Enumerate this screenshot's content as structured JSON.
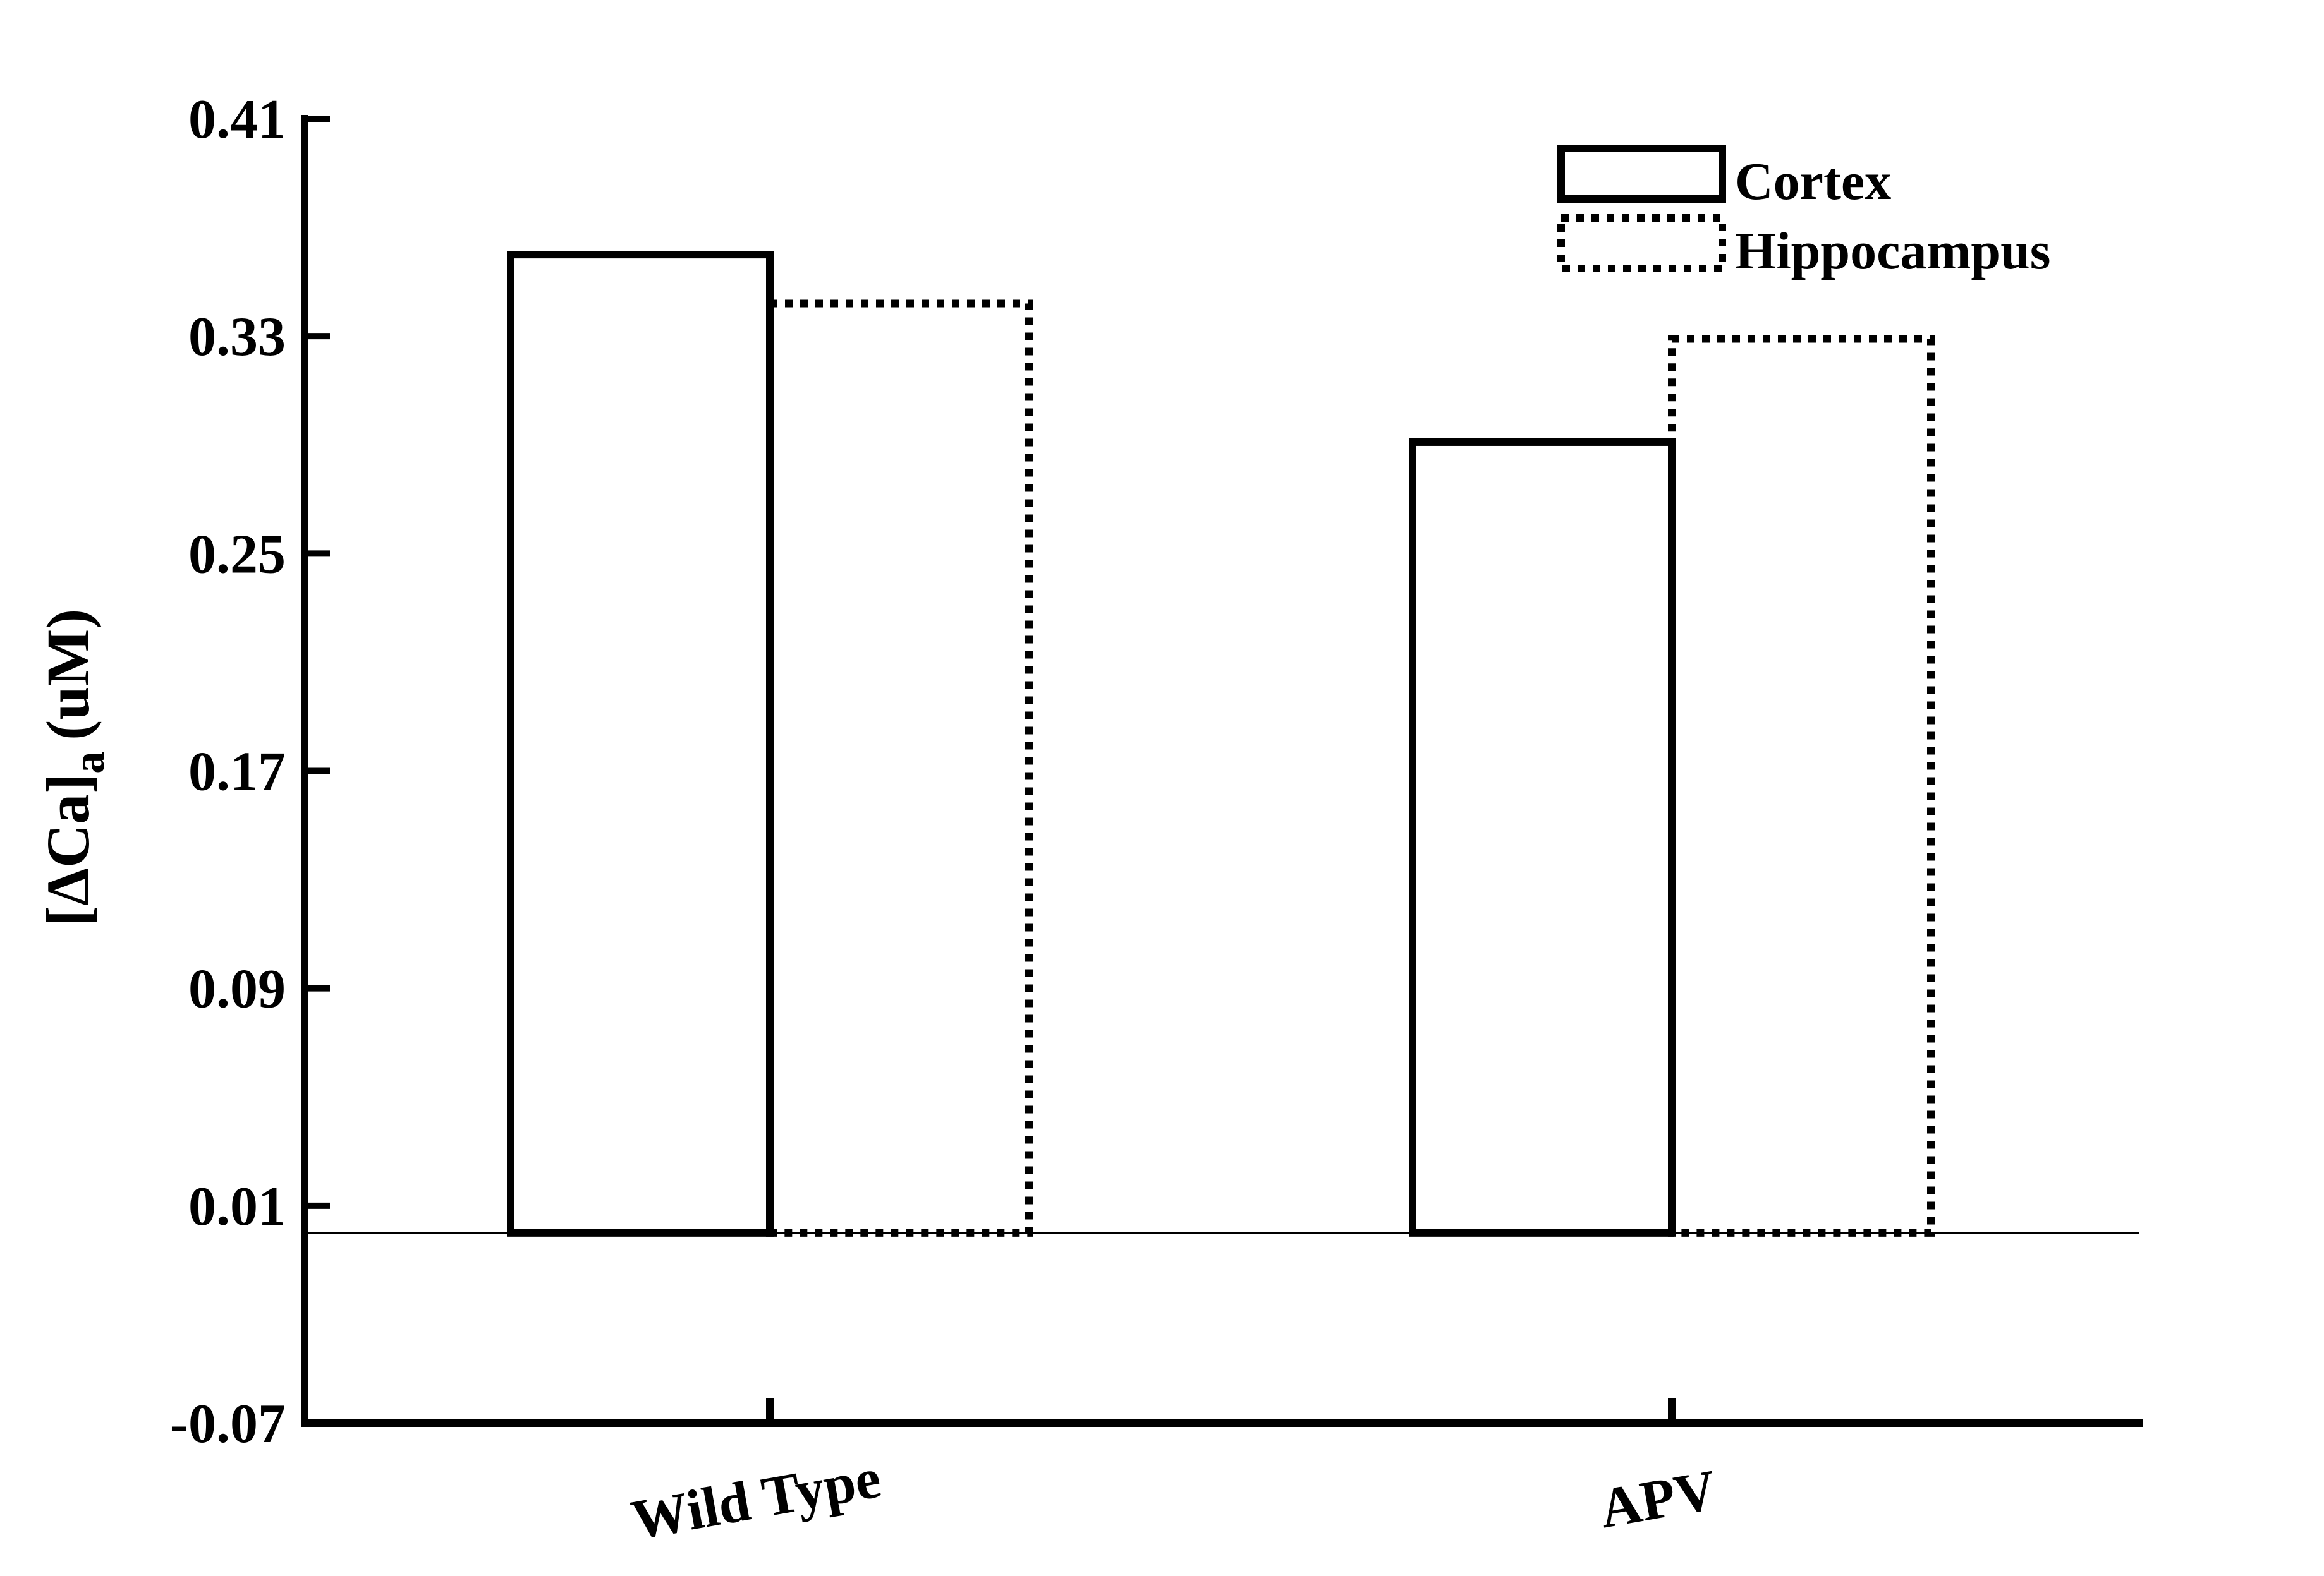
{
  "chart_data": {
    "type": "bar",
    "title": "",
    "xlabel": "",
    "ylabel": "[ΔCa]",
    "ylabel_subscript": "a",
    "ylabel_unit": "(uM)",
    "categories": [
      "Wild Type",
      "APV"
    ],
    "series": [
      {
        "name": "Cortex",
        "values": [
          0.36,
          0.291
        ],
        "style": "solid"
      },
      {
        "name": "Hippocampus",
        "values": [
          0.342,
          0.329
        ],
        "style": "dotted"
      }
    ],
    "baseline": 0.0,
    "ylim": [
      -0.07,
      0.41
    ],
    "yticks": [
      -0.07,
      0.01,
      0.09,
      0.17,
      0.25,
      0.33,
      0.41
    ],
    "ytick_labels": [
      "-0.07",
      "0.01",
      "0.09",
      "0.17",
      "0.25",
      "0.33",
      "0.41"
    ],
    "legend": "top-right",
    "grid": false,
    "colors": {
      "stroke": "#000000",
      "fill": "#ffffff"
    }
  }
}
